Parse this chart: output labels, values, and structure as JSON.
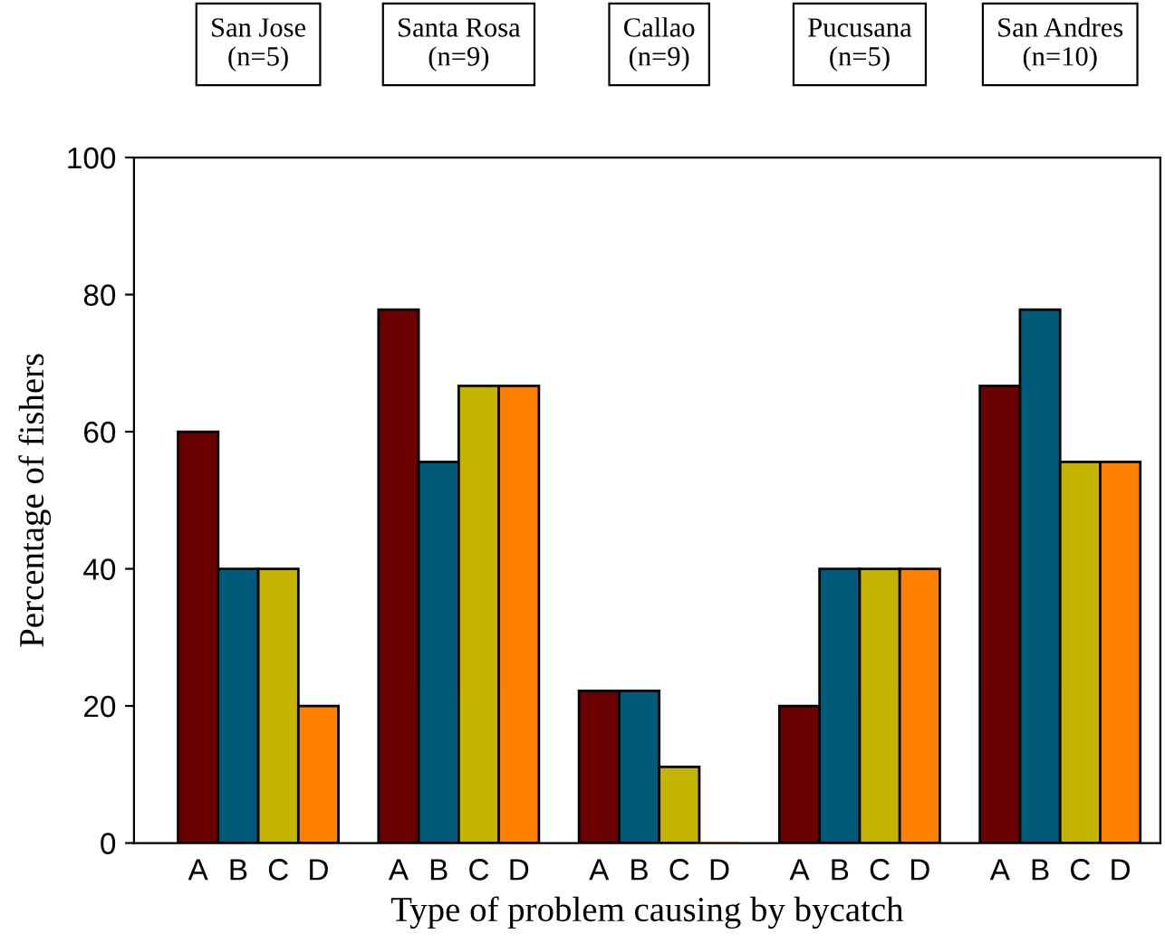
{
  "chart_data": {
    "type": "bar",
    "xlabel": "Type of problem causing by bycatch",
    "ylabel": "Percentage of fishers",
    "categories": [
      "A",
      "B",
      "C",
      "D",
      null,
      "A",
      "B",
      "C",
      "D",
      null,
      "A",
      "B",
      "C",
      "D",
      null,
      "A",
      "B",
      "C",
      "D",
      null,
      "A",
      "B",
      "C",
      "D"
    ],
    "values": [
      60,
      40,
      40,
      20,
      null,
      77.8,
      55.6,
      66.7,
      66.7,
      null,
      22.2,
      22.2,
      11.1,
      0,
      null,
      20,
      40,
      40,
      40,
      null,
      66.7,
      77.8,
      55.6,
      55.6
    ],
    "colors": [
      "#6b0000",
      "#005b7a",
      "#c4b400",
      "#ff8000",
      null,
      "#6b0000",
      "#005b7a",
      "#c4b400",
      "#ff8000",
      null,
      "#6b0000",
      "#005b7a",
      "#c4b400",
      "#ff8000",
      null,
      "#6b0000",
      "#005b7a",
      "#c4b400",
      "#ff8000",
      null,
      "#6b0000",
      "#005b7a",
      "#c4b400",
      "#ff8000"
    ],
    "annotations": [
      "San Jose\n(n=5)",
      "Santa Rosa\n(n=9)",
      "Callao\n(n=9)",
      "Pucusana\n(n=5)",
      "San Andres\n(n=10)"
    ],
    "ylim": [
      0,
      100
    ],
    "yticks": [
      0,
      20,
      40,
      60,
      80,
      100
    ],
    "grid": false,
    "legend": false
  }
}
